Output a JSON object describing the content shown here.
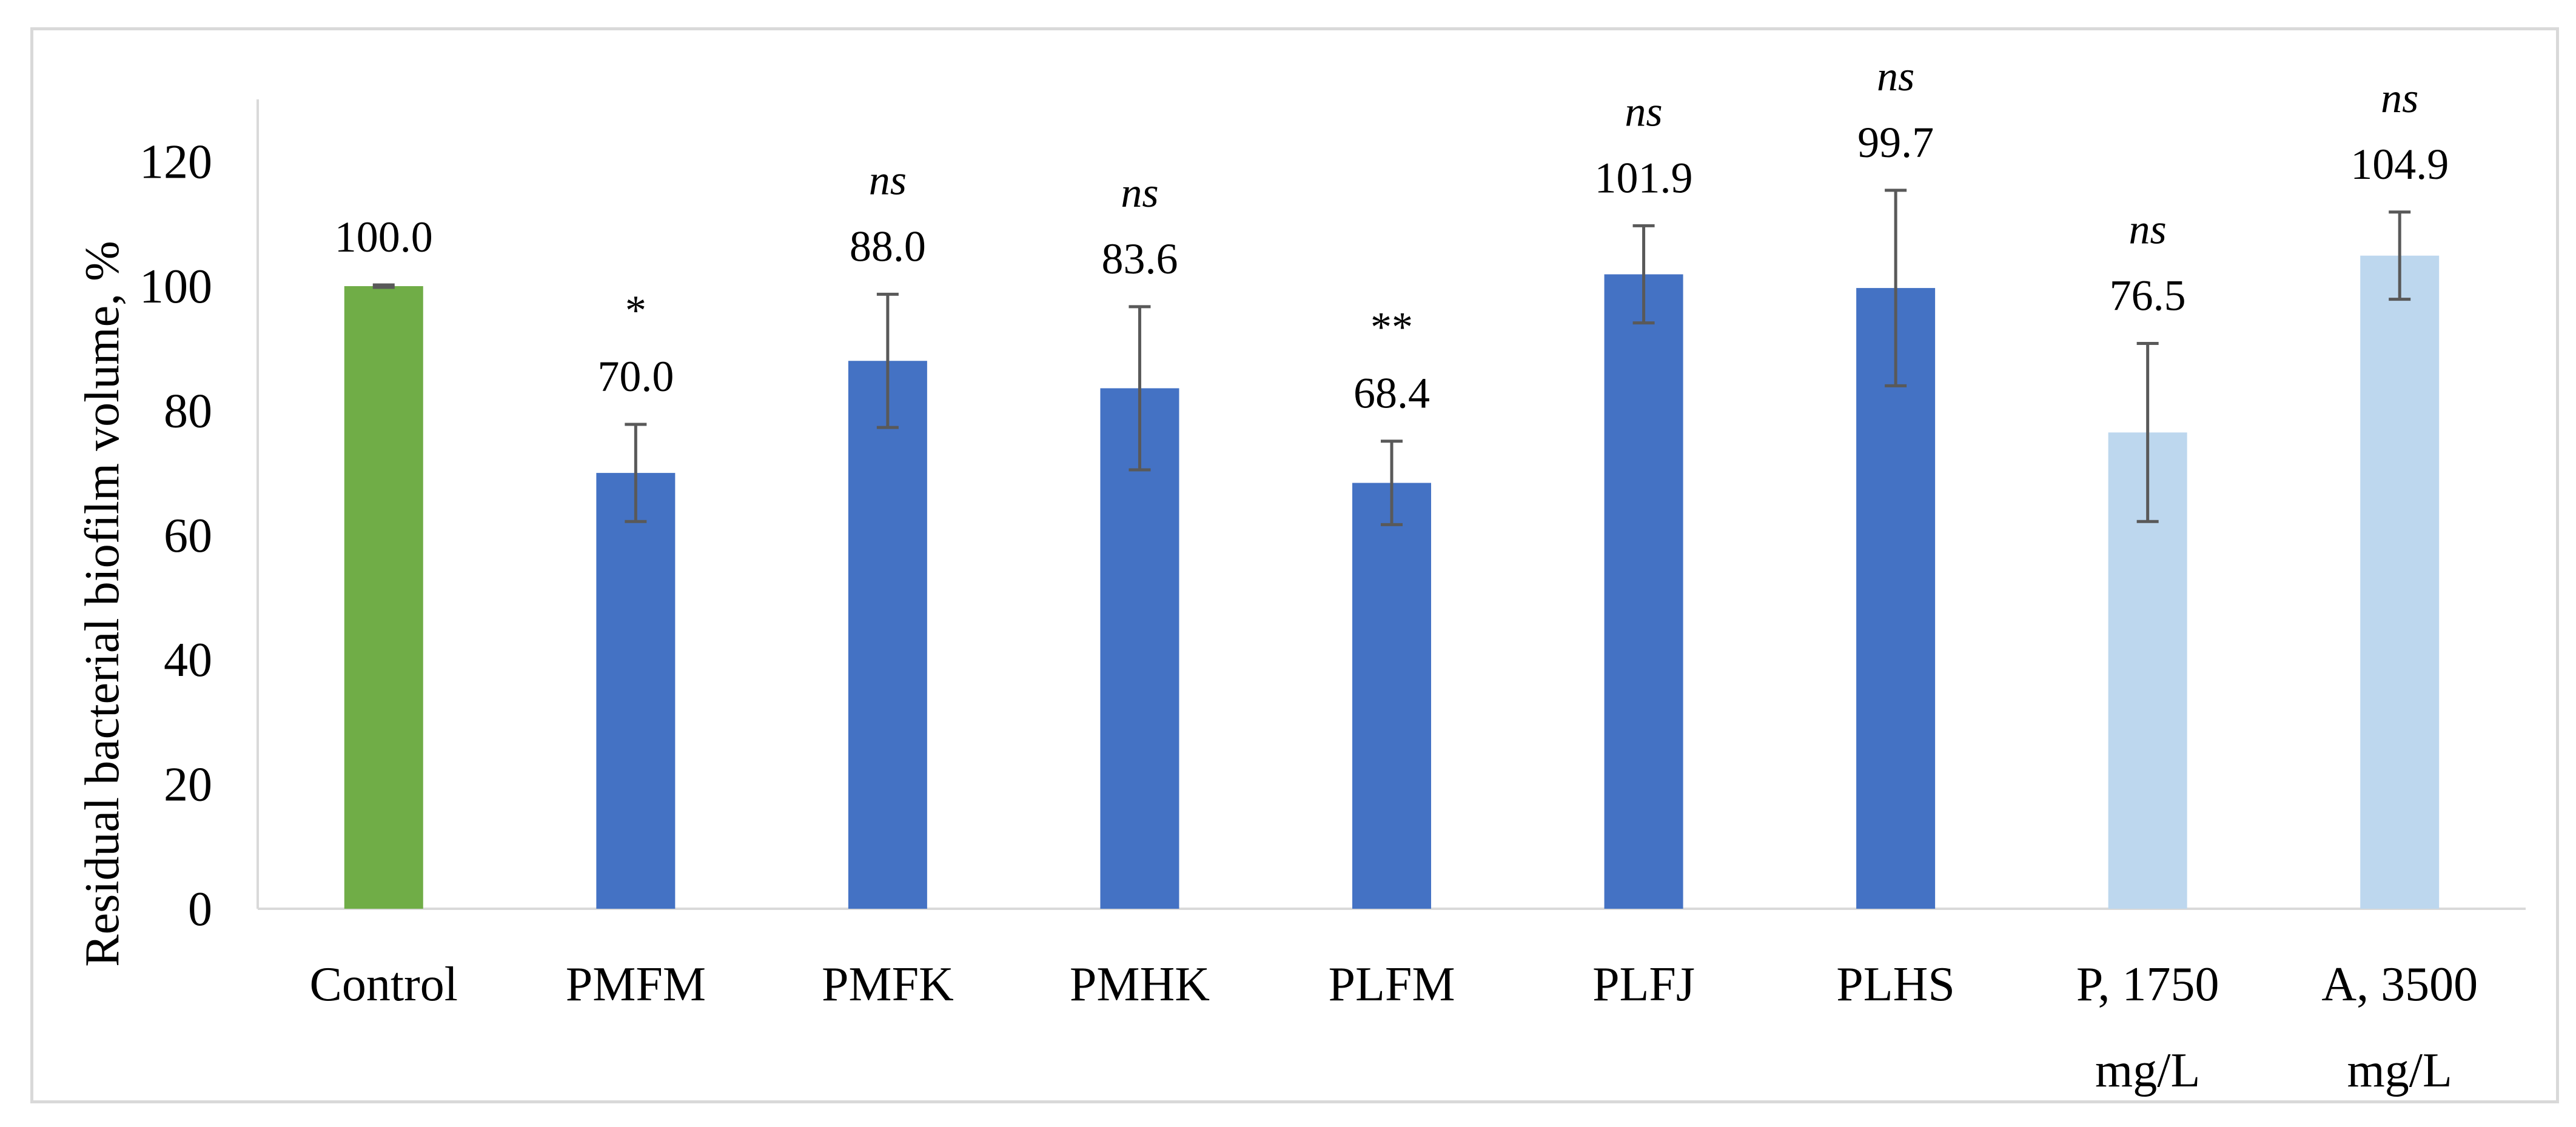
{
  "chart_data": {
    "type": "bar",
    "ylabel": "Residual bacterial biofilm volume, %",
    "xlabel": "",
    "ylim": [
      0,
      130
    ],
    "yticks": [
      0,
      20,
      40,
      60,
      80,
      100,
      120
    ],
    "grid": false,
    "categories": [
      [
        "Control"
      ],
      [
        "PMFM"
      ],
      [
        "PMFK"
      ],
      [
        "PMHK"
      ],
      [
        "PLFM"
      ],
      [
        "PLFJ"
      ],
      [
        "PLHS"
      ],
      [
        "P, 1750",
        "mg/L"
      ],
      [
        "A, 3500",
        "mg/L"
      ]
    ],
    "values": [
      100.0,
      70.0,
      88.0,
      83.6,
      68.4,
      101.9,
      99.7,
      76.5,
      104.9
    ],
    "value_labels": [
      "100.0",
      "70.0",
      "88.0",
      "83.6",
      "68.4",
      "101.9",
      "99.7",
      "76.5",
      "104.9"
    ],
    "error_bars": [
      [
        99.8,
        100.2
      ],
      [
        62.2,
        77.8
      ],
      [
        77.3,
        98.7
      ],
      [
        70.5,
        96.7
      ],
      [
        61.7,
        75.1
      ],
      [
        94.1,
        109.7
      ],
      [
        84.0,
        115.4
      ],
      [
        62.2,
        90.8
      ],
      [
        97.9,
        111.9
      ]
    ],
    "significance": [
      "",
      "*",
      "ns",
      "ns",
      "**",
      "ns",
      "ns",
      "ns",
      "ns"
    ],
    "bar_colors": [
      "#70ad47",
      "#4472c4",
      "#4472c4",
      "#4472c4",
      "#4472c4",
      "#4472c4",
      "#4472c4",
      "#bdd7ee",
      "#bdd7ee"
    ],
    "error_bar_color": "#595959",
    "axis_color": "#d9d9d9"
  }
}
